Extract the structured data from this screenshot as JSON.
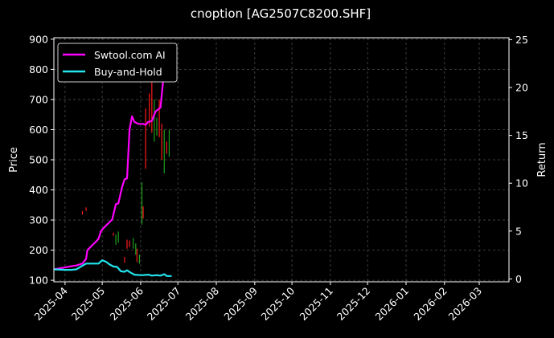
{
  "chart_data": {
    "type": "line",
    "title": "cnoption [AG2507C8200.SHF]",
    "ylabel": "Price",
    "y2label": "Return",
    "ylim": [
      95,
      905
    ],
    "y2lim": [
      -0.3,
      25.2
    ],
    "yticks": [
      100,
      200,
      300,
      400,
      500,
      600,
      700,
      800,
      900
    ],
    "y2ticks": [
      0,
      5,
      10,
      15,
      20,
      25
    ],
    "xlim": [
      "2025-03-23",
      "2026-03-25"
    ],
    "xticks": [
      "2025-04",
      "2025-05",
      "2025-06",
      "2025-07",
      "2025-08",
      "2025-09",
      "2025-10",
      "2025-11",
      "2025-12",
      "2026-01",
      "2026-02",
      "2026-03"
    ],
    "xtick_dates": [
      "2025-04-01",
      "2025-05-01",
      "2025-06-01",
      "2025-07-01",
      "2025-08-01",
      "2025-09-01",
      "2025-10-01",
      "2025-11-01",
      "2025-12-01",
      "2026-01-01",
      "2026-02-01",
      "2026-03-01"
    ],
    "grid": true,
    "legend_position": "top-left",
    "colors": {
      "background": "#000000",
      "text": "#ffffff",
      "grid": "#4a4a4a",
      "strategy": "#ff00ff",
      "benchmark": "#22e5ee",
      "candle_up": "#ff1a1a",
      "candle_down": "#1fa01f"
    },
    "series": [
      {
        "name": "Swtool.com AI",
        "axis": "return",
        "color": "#ff00ff",
        "points": [
          [
            "2025-03-23",
            1.0
          ],
          [
            "2025-04-01",
            1.2
          ],
          [
            "2025-04-07",
            1.35
          ],
          [
            "2025-04-10",
            1.4
          ],
          [
            "2025-04-15",
            1.6
          ],
          [
            "2025-04-18",
            2.1
          ],
          [
            "2025-04-19",
            3.0
          ],
          [
            "2025-04-22",
            3.4
          ],
          [
            "2025-04-26",
            3.9
          ],
          [
            "2025-04-28",
            4.2
          ],
          [
            "2025-04-30",
            5.0
          ],
          [
            "2025-05-02",
            5.3
          ],
          [
            "2025-05-05",
            5.7
          ],
          [
            "2025-05-09",
            6.2
          ],
          [
            "2025-05-12",
            7.8
          ],
          [
            "2025-05-14",
            7.9
          ],
          [
            "2025-05-17",
            9.6
          ],
          [
            "2025-05-19",
            10.4
          ],
          [
            "2025-05-21",
            10.5
          ],
          [
            "2025-05-23",
            15.6
          ],
          [
            "2025-05-25",
            17.0
          ],
          [
            "2025-05-27",
            16.4
          ],
          [
            "2025-05-30",
            16.2
          ],
          [
            "2025-06-03",
            16.2
          ],
          [
            "2025-06-05",
            16.1
          ],
          [
            "2025-06-07",
            16.4
          ],
          [
            "2025-06-10",
            16.5
          ],
          [
            "2025-06-13",
            17.5
          ],
          [
            "2025-06-17",
            17.9
          ],
          [
            "2025-06-19",
            20.5
          ],
          [
            "2025-06-21",
            23.5
          ]
        ]
      },
      {
        "name": "Buy-and-Hold",
        "axis": "return",
        "color": "#22e5ee",
        "points": [
          [
            "2025-03-23",
            1.0
          ],
          [
            "2025-04-01",
            0.95
          ],
          [
            "2025-04-06",
            0.95
          ],
          [
            "2025-04-10",
            1.0
          ],
          [
            "2025-04-14",
            1.3
          ],
          [
            "2025-04-18",
            1.6
          ],
          [
            "2025-04-22",
            1.6
          ],
          [
            "2025-04-28",
            1.6
          ],
          [
            "2025-05-01",
            1.95
          ],
          [
            "2025-05-04",
            1.8
          ],
          [
            "2025-05-07",
            1.5
          ],
          [
            "2025-05-10",
            1.3
          ],
          [
            "2025-05-13",
            1.25
          ],
          [
            "2025-05-16",
            0.8
          ],
          [
            "2025-05-19",
            0.75
          ],
          [
            "2025-05-21",
            0.9
          ],
          [
            "2025-05-24",
            0.65
          ],
          [
            "2025-05-27",
            0.45
          ],
          [
            "2025-05-31",
            0.4
          ],
          [
            "2025-06-03",
            0.4
          ],
          [
            "2025-06-07",
            0.45
          ],
          [
            "2025-06-10",
            0.35
          ],
          [
            "2025-06-14",
            0.4
          ],
          [
            "2025-06-17",
            0.35
          ],
          [
            "2025-06-20",
            0.5
          ],
          [
            "2025-06-22",
            0.3
          ],
          [
            "2025-06-26",
            0.3
          ]
        ]
      }
    ],
    "candles": [
      {
        "date": "2025-04-15",
        "low": 318,
        "high": 330,
        "dir": "up"
      },
      {
        "date": "2025-04-18",
        "low": 330,
        "high": 342,
        "dir": "up"
      },
      {
        "date": "2025-05-10",
        "low": 248,
        "high": 258,
        "dir": "up"
      },
      {
        "date": "2025-05-12",
        "low": 218,
        "high": 252,
        "dir": "down"
      },
      {
        "date": "2025-05-14",
        "low": 225,
        "high": 262,
        "dir": "down"
      },
      {
        "date": "2025-05-19",
        "low": 158,
        "high": 178,
        "dir": "up"
      },
      {
        "date": "2025-05-21",
        "low": 205,
        "high": 235,
        "dir": "up"
      },
      {
        "date": "2025-05-23",
        "low": 210,
        "high": 232,
        "dir": "up"
      },
      {
        "date": "2025-05-26",
        "low": 205,
        "high": 240,
        "dir": "down"
      },
      {
        "date": "2025-05-28",
        "low": 185,
        "high": 222,
        "dir": "down"
      },
      {
        "date": "2025-05-29",
        "low": 160,
        "high": 205,
        "dir": "up"
      },
      {
        "date": "2025-05-31",
        "low": 155,
        "high": 185,
        "dir": "down"
      },
      {
        "date": "2025-06-02",
        "low": 285,
        "high": 425,
        "dir": "down"
      },
      {
        "date": "2025-06-03",
        "low": 305,
        "high": 345,
        "dir": "up"
      },
      {
        "date": "2025-06-05",
        "low": 470,
        "high": 670,
        "dir": "up"
      },
      {
        "date": "2025-06-08",
        "low": 610,
        "high": 720,
        "dir": "up"
      },
      {
        "date": "2025-06-10",
        "low": 590,
        "high": 760,
        "dir": "up"
      },
      {
        "date": "2025-06-12",
        "low": 560,
        "high": 700,
        "dir": "down"
      },
      {
        "date": "2025-06-14",
        "low": 580,
        "high": 640,
        "dir": "down"
      },
      {
        "date": "2025-06-16",
        "low": 575,
        "high": 700,
        "dir": "up"
      },
      {
        "date": "2025-06-18",
        "low": 500,
        "high": 620,
        "dir": "up"
      },
      {
        "date": "2025-06-20",
        "low": 455,
        "high": 600,
        "dir": "down"
      },
      {
        "date": "2025-06-22",
        "low": 520,
        "high": 560,
        "dir": "up"
      },
      {
        "date": "2025-06-24",
        "low": 510,
        "high": 600,
        "dir": "down"
      }
    ]
  }
}
